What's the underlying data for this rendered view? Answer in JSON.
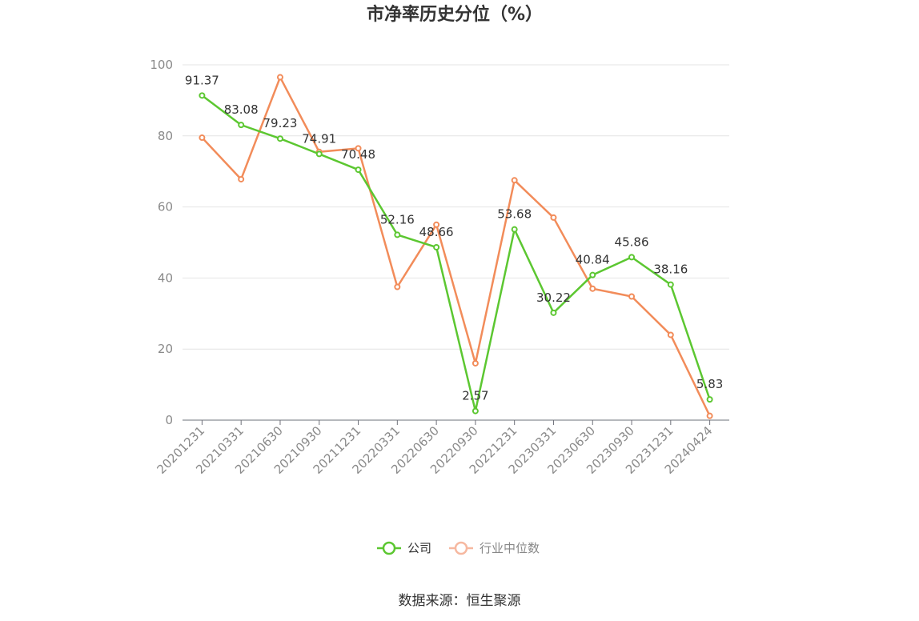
{
  "chart_data": {
    "type": "line",
    "title": "市净率历史分位（%）",
    "categories": [
      "20201231",
      "20210331",
      "20210630",
      "20210930",
      "20211231",
      "20220331",
      "20220630",
      "20220930",
      "20221231",
      "20230331",
      "20230630",
      "20230930",
      "20231231",
      "20240424"
    ],
    "series": [
      {
        "name": "公司",
        "color": "#5cc731",
        "values": [
          91.37,
          83.08,
          79.23,
          74.91,
          70.48,
          52.16,
          48.66,
          2.57,
          53.68,
          30.22,
          40.84,
          45.86,
          38.16,
          5.83
        ],
        "labels": [
          "91.37",
          "83.08",
          "79.23",
          "74.91",
          "70.48",
          "52.16",
          "48.66",
          "2.57",
          "53.68",
          "30.22",
          "40.84",
          "45.86",
          "38.16",
          "5.83"
        ]
      },
      {
        "name": "行业中位数",
        "color": "#f28c5a",
        "legend_color": "#f6b8a0",
        "values": [
          79.5,
          67.8,
          96.5,
          75.5,
          76.5,
          37.5,
          55.0,
          16.0,
          67.5,
          57.0,
          37.0,
          34.8,
          24.0,
          1.2
        ]
      }
    ],
    "ylim": [
      0,
      100
    ],
    "yticks": [
      "0",
      "20",
      "40",
      "60",
      "80",
      "100"
    ],
    "grid": true,
    "legend_position": "bottom-center",
    "source": "数据来源：恒生聚源"
  }
}
